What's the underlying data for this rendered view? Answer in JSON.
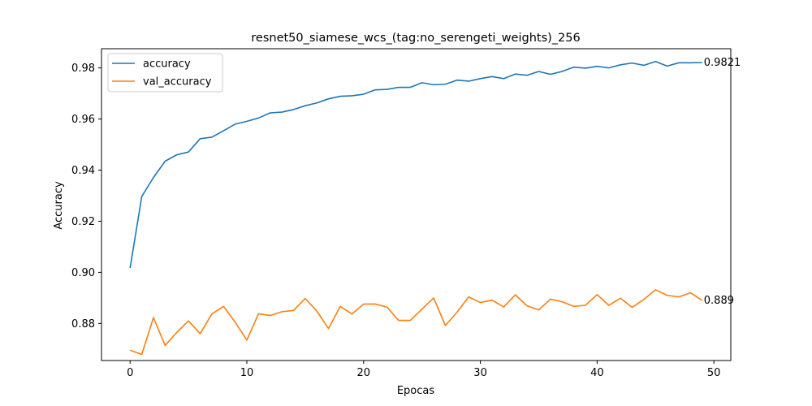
{
  "chart_data": {
    "type": "line",
    "title": "resnet50_siamese_wcs_(tag:no_serengeti_weights)_256",
    "xlabel": "Epocas",
    "ylabel": "Accuracy",
    "xlim": [
      -2.45,
      51.45
    ],
    "ylim": [
      0.8655,
      0.9875
    ],
    "xticks": [
      0,
      10,
      20,
      30,
      40,
      50
    ],
    "xtick_labels": [
      "0",
      "10",
      "20",
      "30",
      "40",
      "50"
    ],
    "yticks": [
      0.88,
      0.9,
      0.92,
      0.94,
      0.96,
      0.98
    ],
    "ytick_labels": [
      "0.88",
      "0.90",
      "0.92",
      "0.94",
      "0.96",
      "0.98"
    ],
    "grid": false,
    "legend_position": "upper-left",
    "x": [
      0,
      1,
      2,
      3,
      4,
      5,
      6,
      7,
      8,
      9,
      10,
      11,
      12,
      13,
      14,
      15,
      16,
      17,
      18,
      19,
      20,
      21,
      22,
      23,
      24,
      25,
      26,
      27,
      28,
      29,
      30,
      31,
      32,
      33,
      34,
      35,
      36,
      37,
      38,
      39,
      40,
      41,
      42,
      43,
      44,
      45,
      46,
      47,
      48,
      49
    ],
    "series": [
      {
        "name": "accuracy",
        "color": "#1f77b4",
        "end_label": "0.9821",
        "values": [
          0.9017,
          0.9297,
          0.9371,
          0.9435,
          0.946,
          0.9471,
          0.9523,
          0.9529,
          0.9554,
          0.958,
          0.9591,
          0.9604,
          0.9624,
          0.9627,
          0.9637,
          0.9652,
          0.9663,
          0.9679,
          0.9689,
          0.9691,
          0.9697,
          0.9714,
          0.9716,
          0.9724,
          0.9724,
          0.9742,
          0.9734,
          0.9736,
          0.9752,
          0.9748,
          0.9758,
          0.9766,
          0.9758,
          0.9776,
          0.9771,
          0.9786,
          0.9775,
          0.9786,
          0.9803,
          0.9799,
          0.9806,
          0.98,
          0.9812,
          0.9819,
          0.981,
          0.9825,
          0.9807,
          0.982,
          0.982,
          0.9821
        ]
      },
      {
        "name": "val_accuracy",
        "color": "#ff7f0e",
        "end_label": "0.889",
        "values": [
          0.8695,
          0.8679,
          0.8823,
          0.8714,
          0.8765,
          0.881,
          0.876,
          0.8837,
          0.8867,
          0.8805,
          0.8735,
          0.8838,
          0.8831,
          0.8846,
          0.8851,
          0.8898,
          0.8848,
          0.878,
          0.8867,
          0.8837,
          0.8876,
          0.8876,
          0.8864,
          0.8812,
          0.8812,
          0.8856,
          0.89,
          0.8792,
          0.8844,
          0.8904,
          0.8882,
          0.8891,
          0.8865,
          0.8912,
          0.8869,
          0.8853,
          0.8895,
          0.8885,
          0.8867,
          0.8871,
          0.8913,
          0.8871,
          0.8899,
          0.8863,
          0.8894,
          0.8932,
          0.891,
          0.8904,
          0.892,
          0.889
        ]
      }
    ]
  }
}
